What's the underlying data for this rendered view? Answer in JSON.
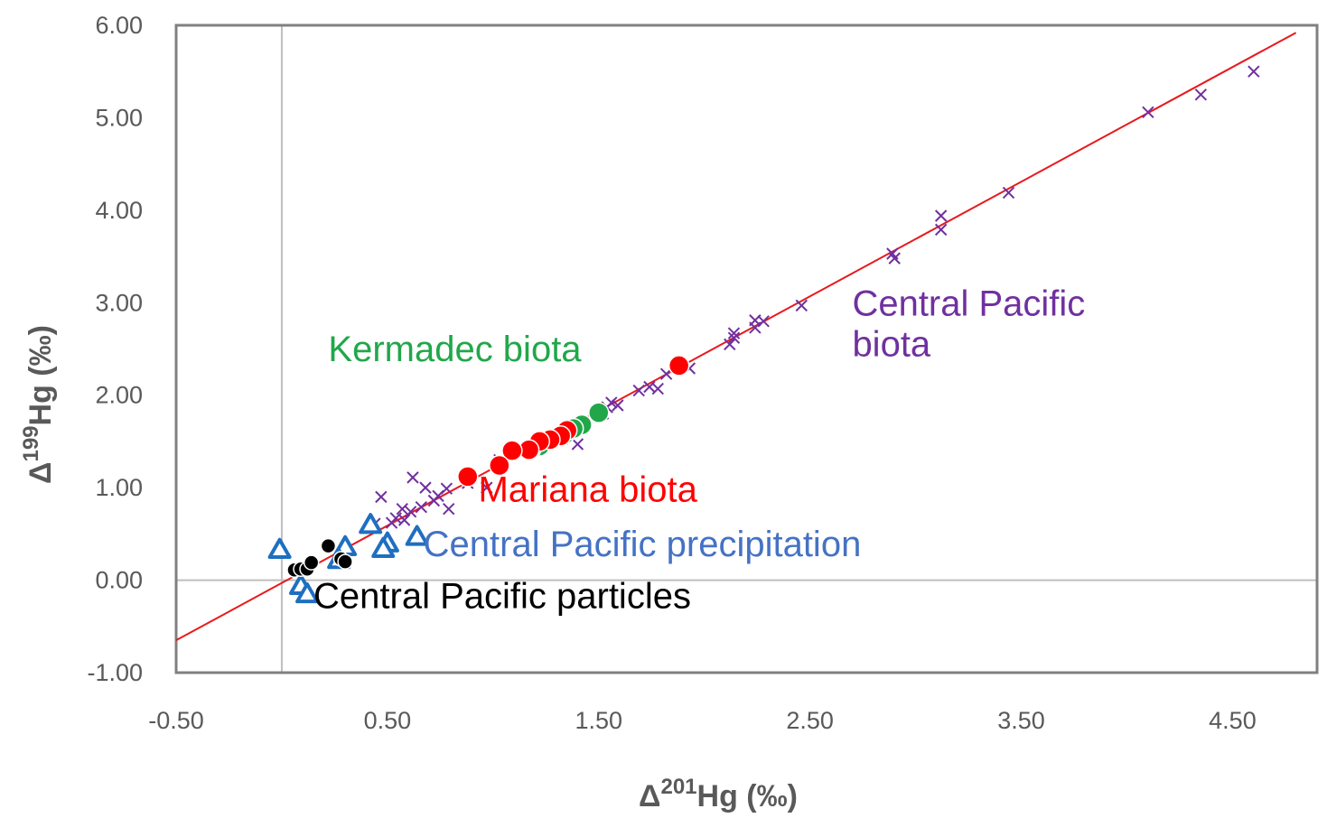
{
  "chart_data": {
    "type": "scatter",
    "xlabel": {
      "prefix": "Δ",
      "sup": "201",
      "suffix": "Hg (‰)"
    },
    "ylabel": {
      "prefix": "Δ",
      "sup": "199",
      "suffix": "Hg (‰)"
    },
    "xlim": [
      -0.5,
      4.9
    ],
    "ylim": [
      -1.0,
      6.0
    ],
    "x_ticks": [
      "-0.50",
      "0.50",
      "1.50",
      "2.50",
      "3.50",
      "4.50"
    ],
    "x_tick_values": [
      -0.5,
      0.5,
      1.5,
      2.5,
      3.5,
      4.5
    ],
    "y_ticks": [
      "-1.00",
      "0.00",
      "1.00",
      "2.00",
      "3.00",
      "4.00",
      "5.00",
      "6.00"
    ],
    "y_tick_values": [
      -1,
      0,
      1,
      2,
      3,
      4,
      5,
      6
    ],
    "grid": false,
    "zero_lines": true,
    "fit_line": {
      "color": "#e8191d",
      "x": [
        -0.5,
        4.8
      ],
      "y": [
        -0.65,
        5.92
      ]
    },
    "series": [
      {
        "name": "Central Pacific biota",
        "color": "#7030a0",
        "marker": "x",
        "points": [
          [
            4.6,
            5.5
          ],
          [
            4.35,
            5.25
          ],
          [
            4.1,
            5.06
          ],
          [
            3.44,
            4.19
          ],
          [
            3.12,
            3.94
          ],
          [
            3.12,
            3.79
          ],
          [
            2.89,
            3.53
          ],
          [
            2.9,
            3.48
          ],
          [
            2.46,
            2.97
          ],
          [
            2.28,
            2.8
          ],
          [
            2.24,
            2.81
          ],
          [
            2.24,
            2.73
          ],
          [
            2.14,
            2.67
          ],
          [
            2.14,
            2.62
          ],
          [
            2.12,
            2.55
          ],
          [
            1.93,
            2.29
          ],
          [
            1.82,
            2.23
          ],
          [
            1.78,
            2.07
          ],
          [
            1.74,
            2.09
          ],
          [
            1.69,
            2.05
          ],
          [
            1.59,
            1.89
          ],
          [
            1.56,
            1.92
          ],
          [
            1.54,
            1.87
          ],
          [
            1.52,
            1.8
          ],
          [
            1.4,
            1.47
          ],
          [
            1.33,
            1.53
          ],
          [
            1.2,
            1.42
          ],
          [
            1.03,
            1.3
          ],
          [
            1.02,
            1.26
          ],
          [
            0.97,
            1.0
          ],
          [
            0.88,
            1.05
          ],
          [
            0.79,
            0.77
          ],
          [
            0.78,
            0.99
          ],
          [
            0.74,
            0.91
          ],
          [
            0.72,
            0.86
          ],
          [
            0.68,
            1.0
          ],
          [
            0.66,
            0.79
          ],
          [
            0.62,
            1.11
          ],
          [
            0.61,
            0.74
          ],
          [
            0.58,
            0.65
          ],
          [
            0.57,
            0.77
          ],
          [
            0.54,
            0.67
          ],
          [
            0.52,
            0.62
          ],
          [
            0.47,
            0.9
          ],
          [
            0.44,
            0.61
          ]
        ]
      },
      {
        "name": "Kermadec biota",
        "color": "#21a74a",
        "marker": "circle",
        "points": [
          [
            1.5,
            1.81
          ],
          [
            1.42,
            1.68
          ],
          [
            1.38,
            1.64
          ],
          [
            1.34,
            1.58
          ],
          [
            1.27,
            1.51
          ],
          [
            1.22,
            1.45
          ],
          [
            1.18,
            1.42
          ]
        ]
      },
      {
        "name": "Mariana biota",
        "color": "#ff0000",
        "marker": "circle",
        "points": [
          [
            1.88,
            2.32
          ],
          [
            1.35,
            1.62
          ],
          [
            1.32,
            1.56
          ],
          [
            1.27,
            1.52
          ],
          [
            1.22,
            1.5
          ],
          [
            1.17,
            1.41
          ],
          [
            1.09,
            1.4
          ],
          [
            1.03,
            1.24
          ],
          [
            0.88,
            1.12
          ]
        ]
      },
      {
        "name": "Central Pacific precipitation",
        "color": "#1f6fc0",
        "marker": "triangle",
        "points": [
          [
            0.64,
            0.47
          ],
          [
            0.5,
            0.4
          ],
          [
            0.48,
            0.34
          ],
          [
            0.42,
            0.6
          ],
          [
            0.3,
            0.36
          ],
          [
            0.27,
            0.22
          ],
          [
            -0.01,
            0.33
          ],
          [
            0.09,
            -0.06
          ],
          [
            0.12,
            -0.15
          ]
        ]
      },
      {
        "name": "Central Pacific particles",
        "color": "#000000",
        "marker": "dot",
        "points": [
          [
            0.06,
            0.11
          ],
          [
            0.09,
            0.12
          ],
          [
            0.12,
            0.12
          ],
          [
            0.14,
            0.19
          ],
          [
            0.22,
            0.37
          ],
          [
            0.28,
            0.23
          ],
          [
            0.3,
            0.2
          ]
        ]
      }
    ],
    "annotations": [
      {
        "text": "Central Pacific",
        "color": "#7030a0",
        "at": [
          2.7,
          2.86
        ]
      },
      {
        "text": "biota",
        "color": "#7030a0",
        "at": [
          2.7,
          2.42
        ]
      },
      {
        "text": "Kermadec biota",
        "color": "#21a74a",
        "at": [
          0.22,
          2.37
        ]
      },
      {
        "text": "Mariana biota",
        "color": "#ff0000",
        "at": [
          0.93,
          0.85
        ]
      },
      {
        "text": "Central Pacific precipitation",
        "color": "#4472c4",
        "at": [
          0.67,
          0.26
        ]
      },
      {
        "text": "Central Pacific particles",
        "color": "#000000",
        "at": [
          0.15,
          -0.3
        ]
      }
    ]
  }
}
